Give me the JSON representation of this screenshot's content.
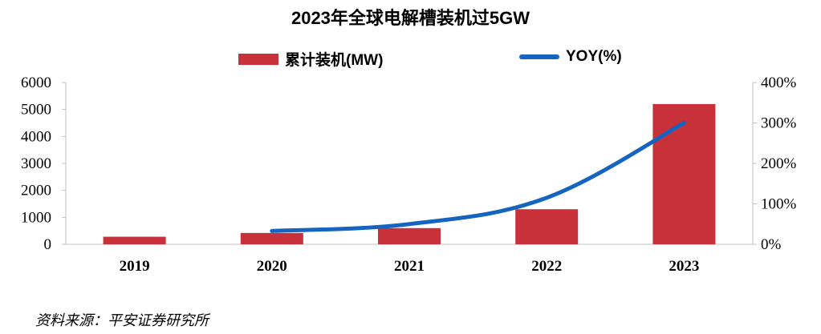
{
  "chart_data": {
    "type": "bar",
    "title": "2023年全球电解槽装机过5GW",
    "categories": [
      "2019",
      "2020",
      "2021",
      "2022",
      "2023"
    ],
    "series": [
      {
        "name": "累计装机(MW)",
        "type": "bar",
        "axis": "left",
        "color": "#c8303a",
        "values": [
          280,
          420,
          600,
          1300,
          5200
        ]
      },
      {
        "name": "YOY(%)",
        "type": "line",
        "axis": "right",
        "color": "#1565c0",
        "values": [
          null,
          33,
          50,
          115,
          300
        ]
      }
    ],
    "y_left": {
      "ylim": [
        0,
        6000
      ],
      "ticks": [
        "0",
        "1000",
        "2000",
        "3000",
        "4000",
        "5000",
        "6000"
      ]
    },
    "y_right": {
      "ylim": [
        0,
        400
      ],
      "ticks": [
        "0%",
        "100%",
        "200%",
        "300%",
        "400%"
      ]
    },
    "legend_position": "top-center",
    "grid": false
  },
  "source": "资料来源：平安证券研究所"
}
